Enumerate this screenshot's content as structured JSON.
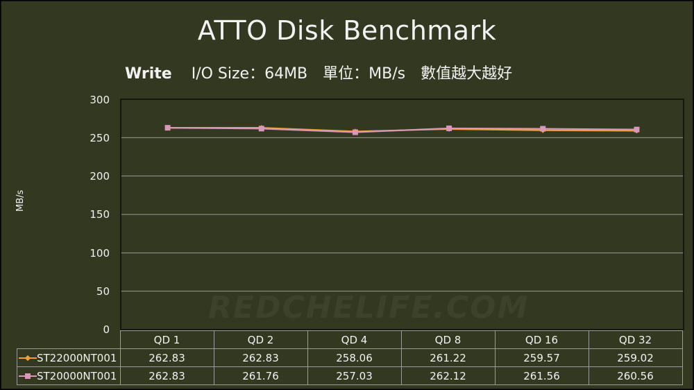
{
  "header": {
    "title": "ATTO Disk Benchmark",
    "subtitle_mode": "Write",
    "subtitle_rest": "I/O Size：64MB　單位：MB/s　數值越大越好"
  },
  "axis": {
    "ylabel": "MB/s",
    "yticks": [
      "300",
      "250",
      "200",
      "150",
      "100",
      "50",
      "0"
    ]
  },
  "watermark": "REDCHELIFE.COM",
  "table": {
    "categories": [
      "QD 1",
      "QD 2",
      "QD 4",
      "QD 8",
      "QD 16",
      "QD 32"
    ],
    "rows": [
      {
        "name": "ST22000NT001",
        "values": [
          "262.83",
          "262.83",
          "258.06",
          "261.22",
          "259.57",
          "259.02"
        ]
      },
      {
        "name": "ST20000NT001",
        "values": [
          "262.83",
          "261.76",
          "257.03",
          "262.12",
          "261.56",
          "260.56"
        ]
      }
    ]
  },
  "colors": {
    "background": "#333820",
    "series1": "#f0a030",
    "series2": "#d898b8",
    "gridline": "#9a9a9a",
    "text": "#f2f2f2"
  },
  "chart_data": {
    "type": "line",
    "title": "ATTO Disk Benchmark",
    "subtitle": "Write　I/O Size：64MB　單位：MB/s　數值越大越好",
    "xlabel": "",
    "ylabel": "MB/s",
    "categories": [
      "QD 1",
      "QD 2",
      "QD 4",
      "QD 8",
      "QD 16",
      "QD 32"
    ],
    "series": [
      {
        "name": "ST22000NT001",
        "marker": "diamond",
        "color": "#f0a030",
        "values": [
          262.83,
          262.83,
          258.06,
          261.22,
          259.57,
          259.02
        ]
      },
      {
        "name": "ST20000NT001",
        "marker": "square",
        "color": "#d898b8",
        "values": [
          262.83,
          261.76,
          257.03,
          262.12,
          261.56,
          260.56
        ]
      }
    ],
    "ylim": [
      0,
      300
    ],
    "yticks": [
      0,
      50,
      100,
      150,
      200,
      250,
      300
    ],
    "grid": true,
    "legend_position": "data-table"
  }
}
